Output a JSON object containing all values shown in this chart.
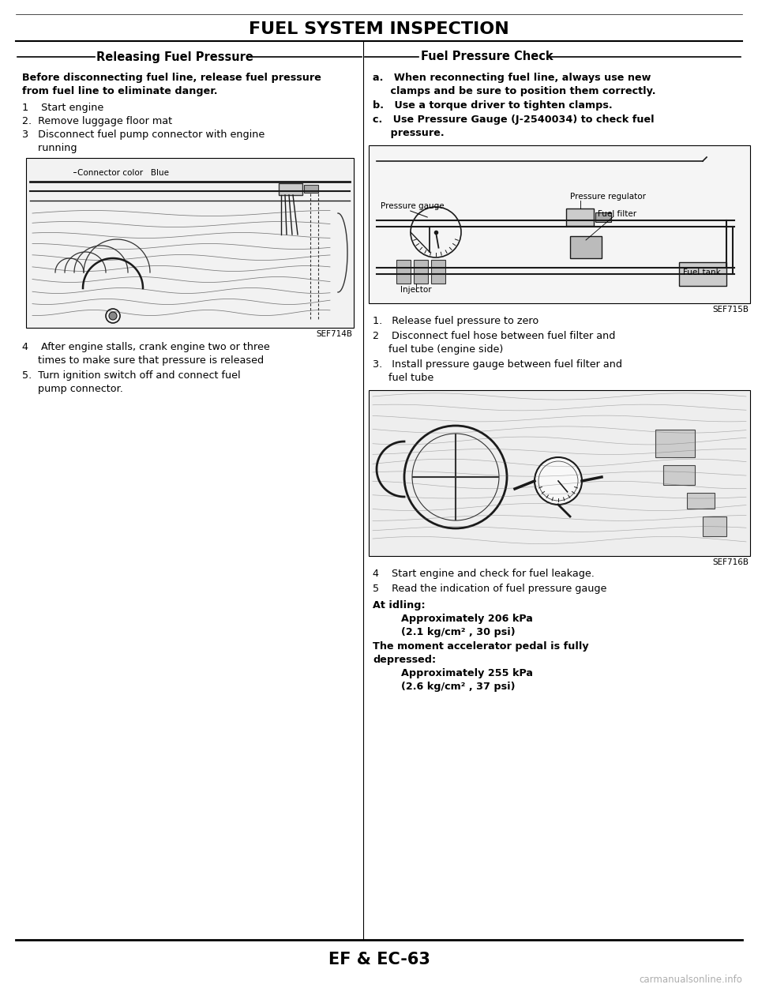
{
  "title": "FUEL SYSTEM INSPECTION",
  "left_section_title": "Releasing Fuel Pressure",
  "right_section_title": "Fuel Pressure Check",
  "footer": "EF & EC-63",
  "watermark": "carmanualsonline.info",
  "left_intro_line1": "Before disconnecting fuel line, release fuel pressure",
  "left_intro_line2": "from fuel line to eliminate danger.",
  "left_step1": "1    Start engine",
  "left_step2": "2.  Remove luggage floor mat",
  "left_step3a": "3   Disconnect fuel pump connector with engine",
  "left_step3b": "     running",
  "left_figure_caption": "SEF714B",
  "left_figure_label": "Connector color   Blue",
  "left_step4a": "4    After engine stalls, crank engine two or three",
  "left_step4b": "     times to make sure that pressure is released",
  "left_step5a": "5.  Turn ignition switch off and connect fuel",
  "left_step5b": "     pump connector.",
  "right_step_a1": "a.   When reconnecting fuel line, always use new",
  "right_step_a2": "     clamps and be sure to position them correctly.",
  "right_step_b": "b.   Use a torque driver to tighten clamps.",
  "right_step_c1": "c.   Use Pressure Gauge (J-2540034) to check fuel",
  "right_step_c2": "     pressure.",
  "right_figure1_caption": "SEF715B",
  "right_step1": "1.   Release fuel pressure to zero",
  "right_step2a": "2    Disconnect fuel hose between fuel filter and",
  "right_step2b": "     fuel tube (engine side)",
  "right_step3a": "3.   Install pressure gauge between fuel filter and",
  "right_step3b": "     fuel tube",
  "right_figure2_caption": "SEF716B",
  "right_step4": "4    Start engine and check for fuel leakage.",
  "right_step5": "5    Read the indication of fuel pressure gauge",
  "pressure_line1": "At idling:",
  "pressure_line2": "        Approximately 206 kPa",
  "pressure_line3": "        (2.1 kg/cm² , 30 psi)",
  "pressure_line4": "The moment accelerator pedal is fully",
  "pressure_line5": "depressed:",
  "pressure_line6": "        Approximately 255 kPa",
  "pressure_line7": "        (2.6 kg/cm² , 37 psi)",
  "bg_color": "#ffffff",
  "text_color": "#000000",
  "fig_bg": "#e8e8e8",
  "fig_border": "#666666"
}
